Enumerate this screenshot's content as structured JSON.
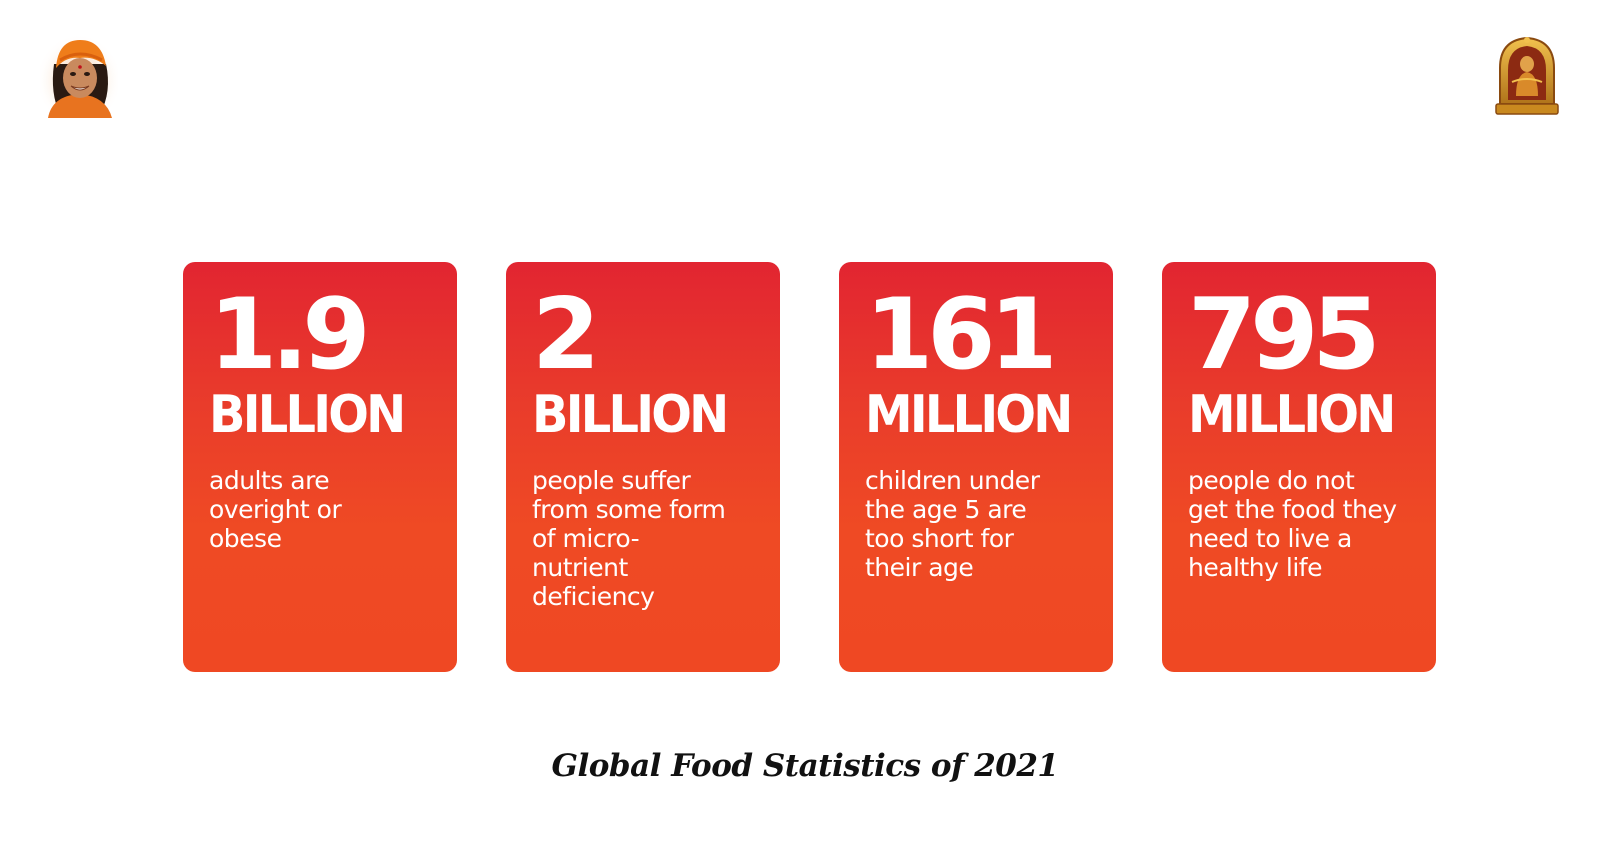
{
  "header": {
    "left_logo_icon": "guru-portrait-icon",
    "right_logo_icon": "deity-shrine-icon"
  },
  "colors": {
    "card_top": "#e22531",
    "card_bottom": "#ef4823",
    "text_on_card": "#ffffff",
    "caption": "#111111"
  },
  "cards": [
    {
      "number": "1.9",
      "unit": "BILLION",
      "description": "adults are\noveright or\nobese"
    },
    {
      "number": "2",
      "unit": "BILLION",
      "description": "people suffer\nfrom some form\nof micro-\nnutrient\ndeficiency"
    },
    {
      "number": "161",
      "unit": "MILLION",
      "description": "children under\nthe age 5 are\ntoo short for\ntheir age"
    },
    {
      "number": "795",
      "unit": "MILLION",
      "description": "people do not\nget the food they\nneed to live a\nhealthy life"
    }
  ],
  "caption": "Global Food Statistics of 2021"
}
